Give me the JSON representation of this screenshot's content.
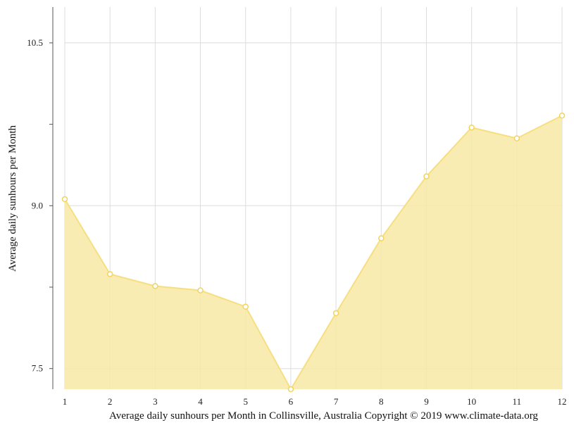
{
  "chart_data": {
    "type": "area",
    "ylabel": "Average daily sunhours per Month",
    "caption": "Average daily sunhours per Month in Collinsville, Australia Copyright © 2019 www.climate-data.org",
    "x": [
      1,
      2,
      3,
      4,
      5,
      6,
      7,
      8,
      9,
      10,
      11,
      12
    ],
    "x_tick_labels": [
      "1",
      "2",
      "3",
      "4",
      "5",
      "6",
      "7",
      "8",
      "9",
      "10",
      "11",
      "12"
    ],
    "y_tick_labels": [
      "7.5",
      "9.0",
      "10.5"
    ],
    "y_ticks": [
      7.5,
      9.0,
      10.5
    ],
    "ylim": [
      7.31,
      10.83
    ],
    "grid": true,
    "series": [
      {
        "values": [
          9.06,
          8.37,
          8.26,
          8.22,
          8.07,
          7.31,
          8.01,
          8.7,
          9.27,
          9.72,
          9.62,
          9.83
        ]
      }
    ],
    "colors": {
      "fill": "#f8e9a6",
      "line": "#f6df80",
      "marker_fill": "#ffffff",
      "marker_stroke": "#f3d35a"
    }
  }
}
